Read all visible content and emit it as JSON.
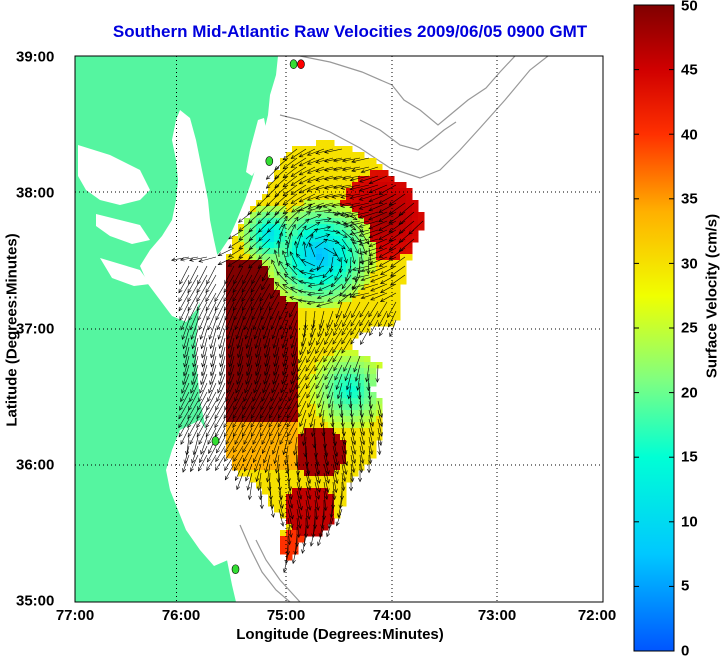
{
  "title": "Southern Mid-Atlantic Raw Velocities 2009/06/05 0900 GMT",
  "x_axis": {
    "label": "Longitude (Degrees:Minutes)",
    "ticks": [
      "77:00",
      "76:00",
      "75:00",
      "74:00",
      "73:00",
      "72:00"
    ]
  },
  "y_axis": {
    "label": "Latitude (Degrees:Minutes)",
    "ticks": [
      "39:00",
      "38:00",
      "37:00",
      "36:00",
      "35:00"
    ]
  },
  "colorbar": {
    "label": "Surface Velocity (cm/s)",
    "ticks": [
      "50",
      "45",
      "40",
      "35",
      "30",
      "25",
      "20",
      "15",
      "10",
      "5",
      "0"
    ],
    "min": 0,
    "max": 50,
    "colormap": "jet"
  },
  "colors": {
    "land": "#55f5a0",
    "title": "#0000dd",
    "station_marker": "#33dd33",
    "station_marker_active": "#ff0000",
    "bathymetry_contour": "#999999"
  },
  "map": {
    "lon_range": [
      -77,
      -72
    ],
    "lat_range": [
      35,
      39
    ],
    "grid": "dotted"
  },
  "stations": [
    {
      "lon": -74.86,
      "lat": 38.94,
      "status": "active"
    },
    {
      "lon": -74.93,
      "lat": 38.94,
      "status": "normal"
    },
    {
      "lon": -75.16,
      "lat": 38.23,
      "status": "normal"
    },
    {
      "lon": -75.67,
      "lat": 36.18,
      "status": "normal"
    },
    {
      "lon": -75.48,
      "lat": 35.24,
      "status": "normal"
    }
  ]
}
